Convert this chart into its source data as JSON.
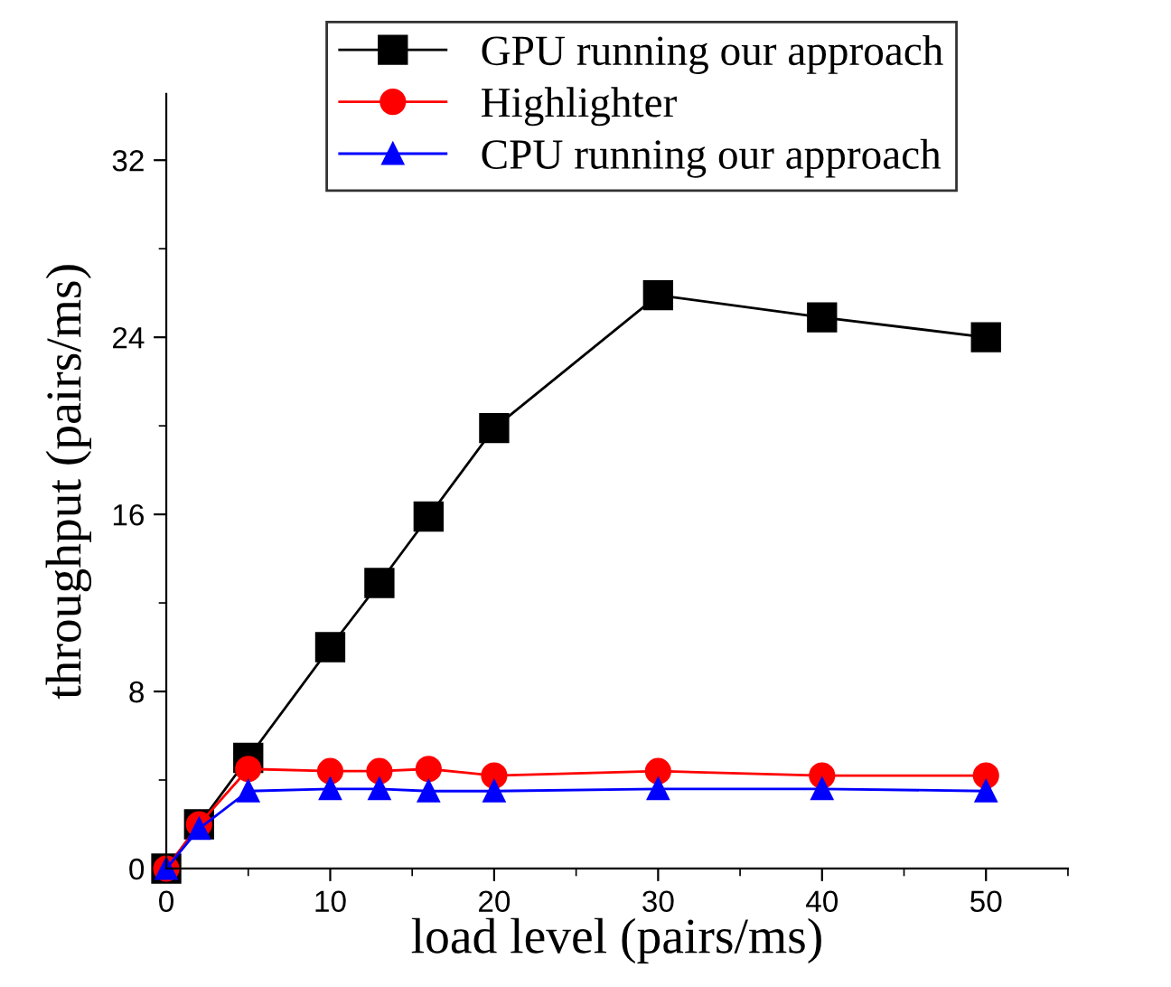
{
  "chart_data": {
    "type": "line",
    "xlabel": "load level (pairs/ms)",
    "ylabel": "throughput (pairs/ms)",
    "xlim": [
      0,
      55
    ],
    "ylim": [
      0,
      35
    ],
    "xticks": [
      0,
      10,
      20,
      30,
      40,
      50
    ],
    "yticks": [
      0,
      8,
      16,
      24,
      32
    ],
    "x": [
      0,
      2,
      5,
      10,
      13,
      16,
      20,
      30,
      40,
      50
    ],
    "grid": false,
    "legend": "top right",
    "series": [
      {
        "name": "GPU running our approach",
        "color": "#000000",
        "marker": "square",
        "values": [
          0,
          2.0,
          5.0,
          10.0,
          12.9,
          15.9,
          19.9,
          25.9,
          24.9,
          24.0
        ]
      },
      {
        "name": "Highlighter",
        "color": "#ff0000",
        "marker": "circle",
        "values": [
          0,
          2.0,
          4.5,
          4.4,
          4.4,
          4.5,
          4.2,
          4.4,
          4.2,
          4.2
        ]
      },
      {
        "name": "CPU running our approach",
        "color": "#0000ff",
        "marker": "triangle",
        "values": [
          0,
          1.8,
          3.5,
          3.6,
          3.6,
          3.5,
          3.5,
          3.6,
          3.6,
          3.5
        ]
      }
    ]
  }
}
